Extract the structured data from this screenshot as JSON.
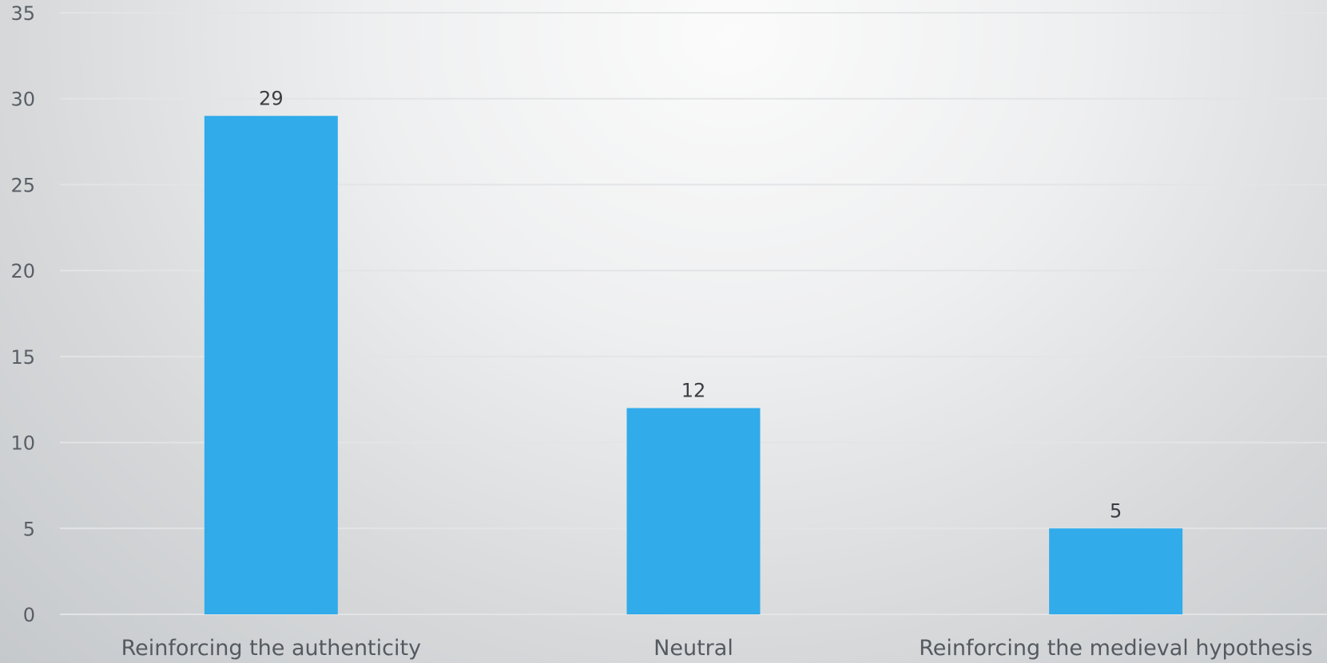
{
  "chart_data": {
    "type": "bar",
    "categories": [
      "Reinforcing the authenticity",
      "Neutral",
      "Reinforcing the medieval hypothesis"
    ],
    "values": [
      29,
      12,
      5
    ],
    "data_labels": [
      "29",
      "12",
      "5"
    ],
    "ylim": [
      0,
      35
    ],
    "yticks": [
      0,
      5,
      10,
      15,
      20,
      25,
      30,
      35
    ],
    "ytick_labels": [
      "0",
      "5",
      "10",
      "15",
      "20",
      "25",
      "30",
      "35"
    ],
    "grid": true,
    "legend": "none",
    "colors": {
      "bar": "#31abea"
    }
  }
}
